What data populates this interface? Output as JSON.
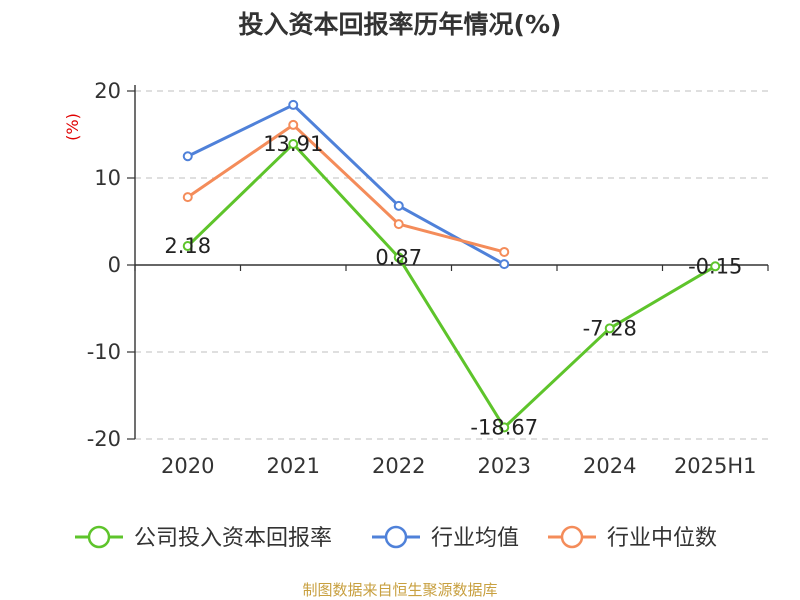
{
  "chart_data": {
    "type": "line",
    "title": "投入资本回报率历年情况(%)",
    "ylabel": "(%)",
    "xlabel": "",
    "categories": [
      "2020",
      "2021",
      "2022",
      "2023",
      "2024",
      "2025H1"
    ],
    "ylim": [
      -20,
      20
    ],
    "yticks": [
      "20",
      "10",
      "0",
      "-10",
      "-20"
    ],
    "grid": "horizontal-dashed",
    "legend": "bottom",
    "series": [
      {
        "name": "公司投入资本回报率",
        "color": "#5ec42b",
        "values": [
          2.18,
          13.91,
          0.87,
          -18.67,
          -7.28,
          -0.15
        ],
        "labels": [
          "2.18",
          "13.91",
          "0.87",
          "-18.67",
          "-7.28",
          "-0.15"
        ]
      },
      {
        "name": "行业均值",
        "color": "#4f81d9",
        "values": [
          12.5,
          18.4,
          6.8,
          0.1,
          null,
          null
        ]
      },
      {
        "name": "行业中位数",
        "color": "#f48c5a",
        "values": [
          7.8,
          16.1,
          4.7,
          1.5,
          null,
          null
        ]
      }
    ]
  },
  "source": {
    "text": "制图数据来自恒生聚源数据库",
    "color": "#c8a040"
  }
}
